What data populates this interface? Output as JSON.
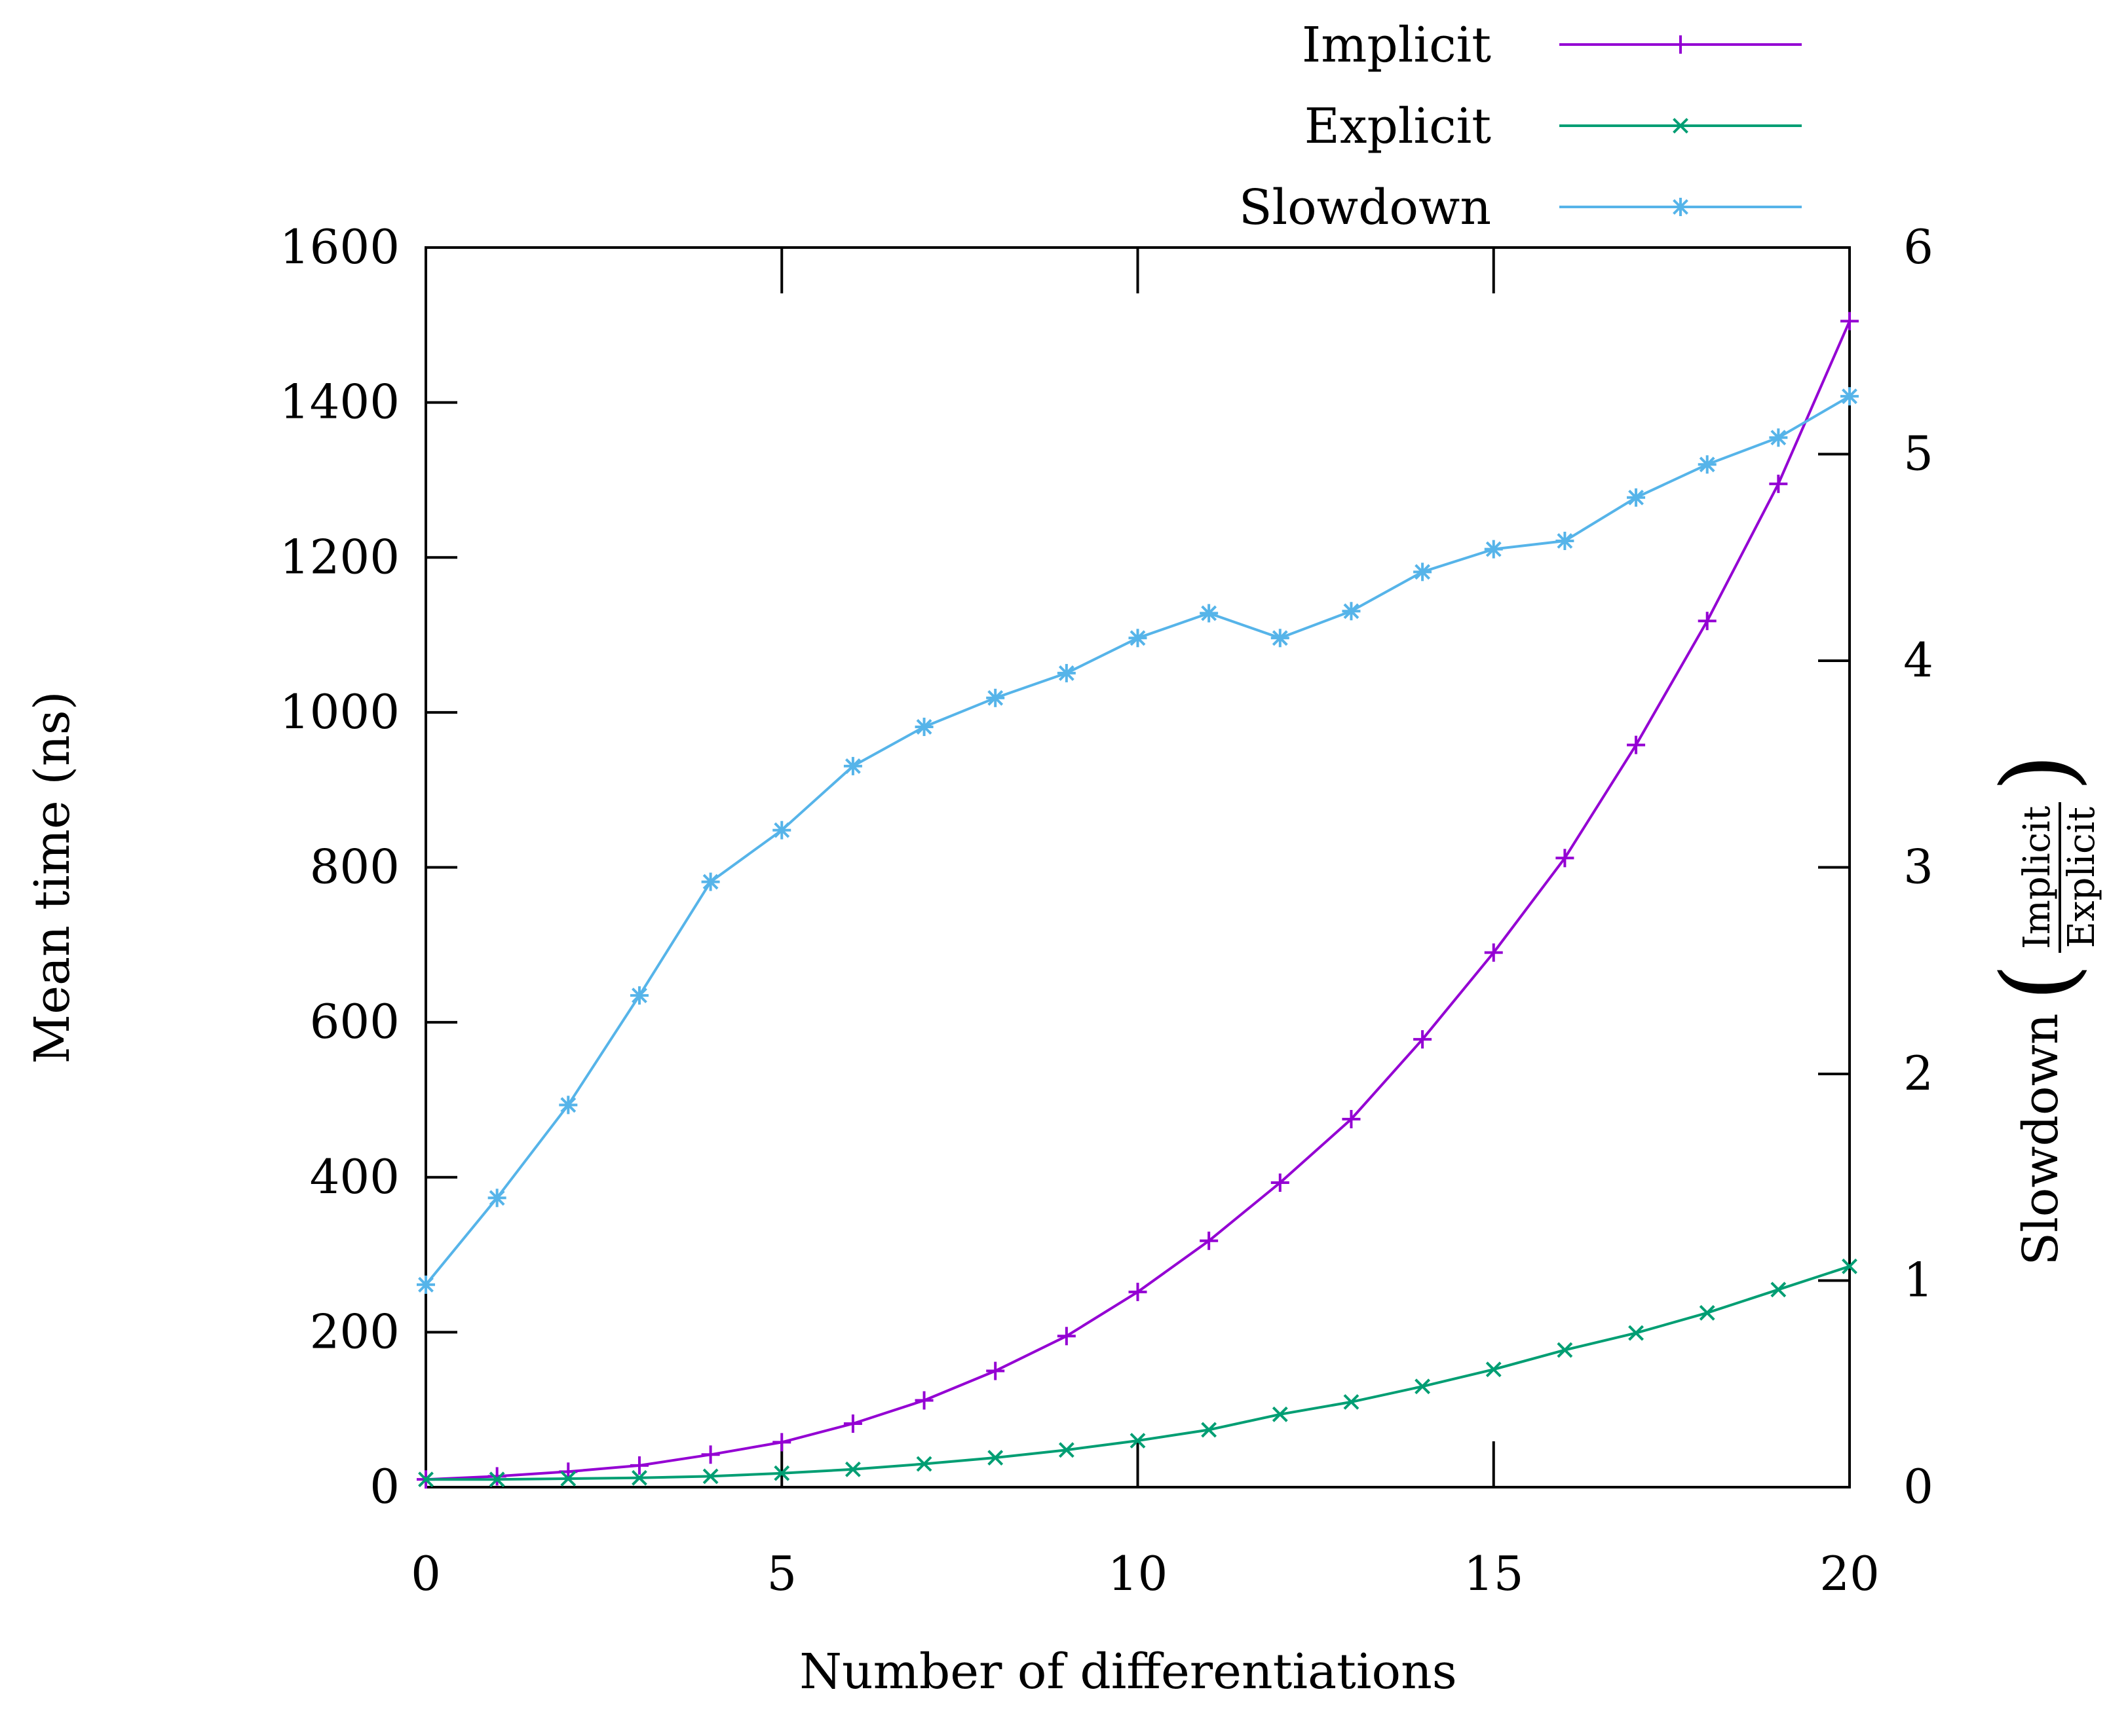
{
  "chart_data": {
    "type": "line",
    "title": "",
    "xlabel": "Number of differentiations",
    "ylabel": "Mean time (ns)",
    "y2label": {
      "text": "Slowdown",
      "numerator": "Implicit",
      "denominator": "Explicit"
    },
    "xlim": [
      0,
      20
    ],
    "ylim": [
      0,
      1600
    ],
    "y2lim": [
      0,
      6
    ],
    "x_ticks": [
      "0",
      "5",
      "10",
      "15",
      "20"
    ],
    "y_ticks": [
      "0",
      "200",
      "400",
      "600",
      "800",
      "1000",
      "1200",
      "1400",
      "1600"
    ],
    "y2_ticks": [
      "0",
      "1",
      "2",
      "3",
      "4",
      "5",
      "6"
    ],
    "grid": false,
    "legend_position": "top-right",
    "x": [
      0,
      1,
      2,
      3,
      4,
      5,
      6,
      7,
      8,
      9,
      10,
      11,
      12,
      13,
      14,
      15,
      16,
      17,
      18,
      19,
      20
    ],
    "series": [
      {
        "name": "Implicit",
        "axis": "left",
        "color": "#9400d3",
        "marker": "plus",
        "values": [
          10,
          14,
          20,
          28,
          42,
          58,
          82,
          112,
          150,
          195,
          252,
          318,
          393,
          475,
          578,
          690,
          812,
          958,
          1118,
          1295,
          1505
        ]
      },
      {
        "name": "Explicit",
        "axis": "left",
        "color": "#009e73",
        "marker": "x",
        "values": [
          10,
          10,
          11,
          12,
          14,
          18,
          23,
          30,
          38,
          48,
          60,
          74,
          94,
          110,
          130,
          152,
          177,
          199,
          225,
          255,
          285
        ]
      },
      {
        "name": "Slowdown",
        "axis": "right",
        "color": "#56b4e9",
        "marker": "star",
        "values": [
          0.98,
          1.4,
          1.85,
          2.38,
          2.93,
          3.18,
          3.49,
          3.68,
          3.82,
          3.94,
          4.11,
          4.23,
          4.11,
          4.24,
          4.43,
          4.54,
          4.58,
          4.79,
          4.95,
          5.08,
          5.28
        ]
      }
    ]
  }
}
